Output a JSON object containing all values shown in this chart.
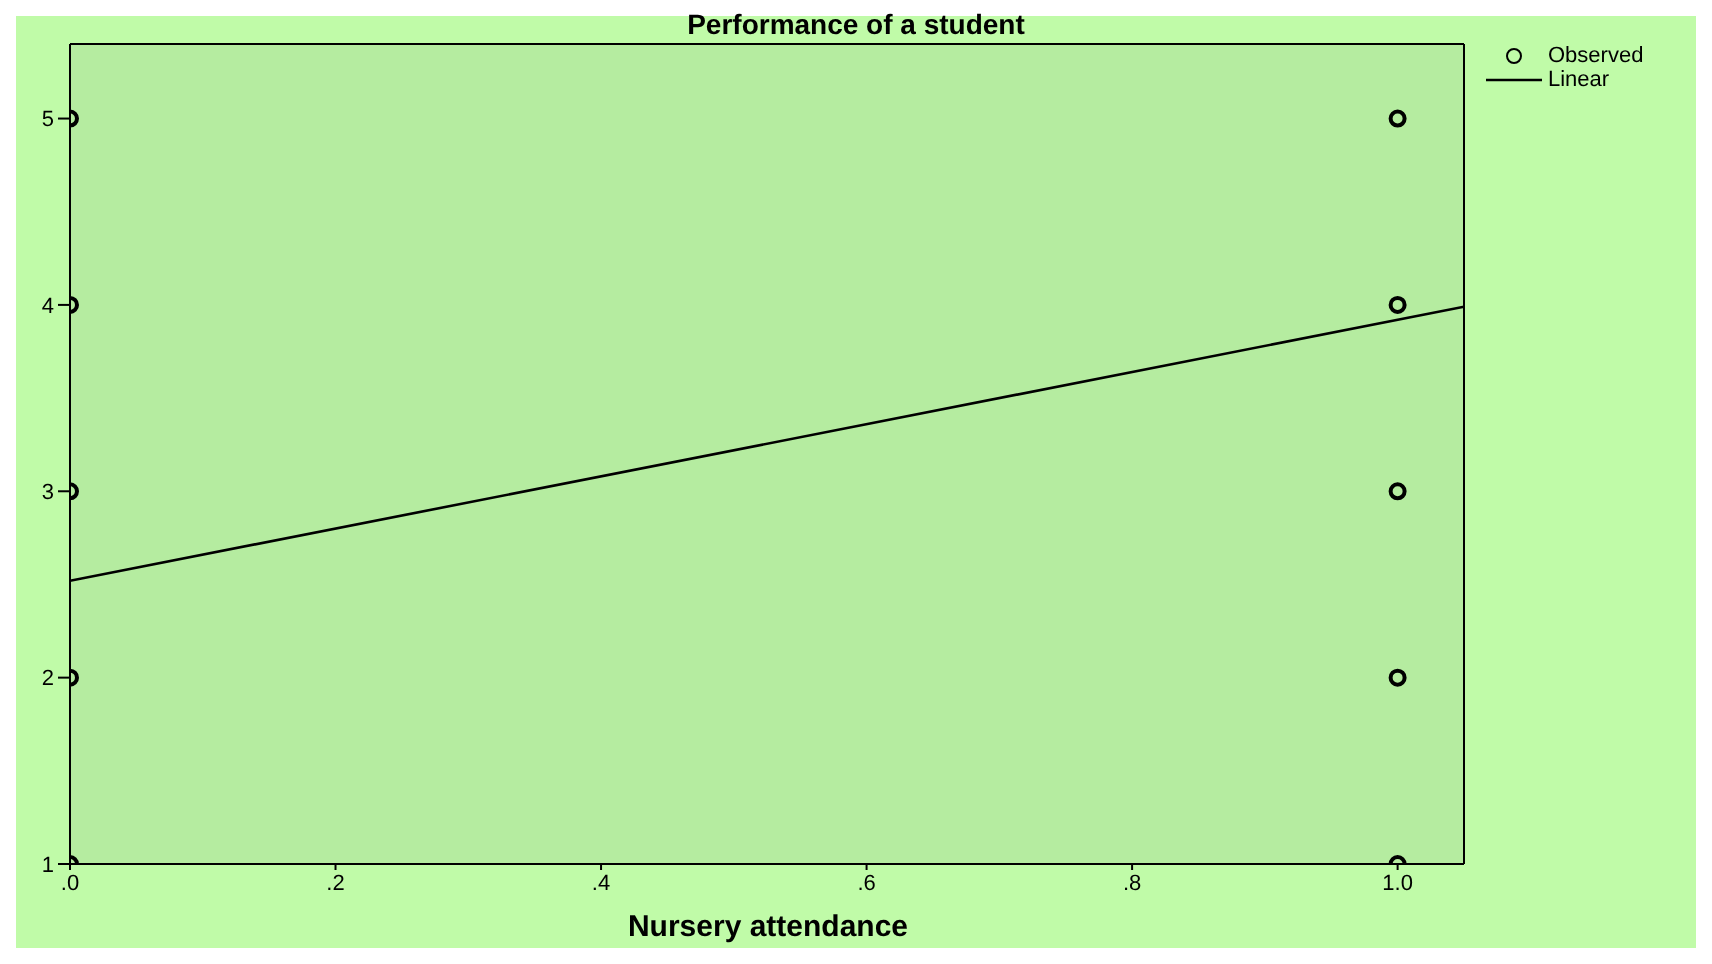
{
  "chart_data": {
    "type": "scatter",
    "title": "Performance of a student",
    "xlabel": "Nursery attendance",
    "series": [
      {
        "name": "Observed",
        "marker": "circle",
        "color": "#000000",
        "x": [
          0,
          0,
          0,
          0,
          0,
          1,
          1,
          1,
          1,
          1
        ],
        "values": [
          1,
          2,
          3,
          4,
          5,
          1,
          2,
          3,
          4,
          5
        ]
      },
      {
        "name": "Linear",
        "type": "line",
        "marker": "none",
        "color": "#000000",
        "x": [
          0,
          1.05
        ],
        "values": [
          2.52,
          3.99
        ]
      }
    ],
    "xlim": [
      0,
      1.05
    ],
    "xticks": [
      {
        "value": 0,
        "label": ".0"
      },
      {
        "value": 0.2,
        "label": ".2"
      },
      {
        "value": 0.4,
        "label": ".4"
      },
      {
        "value": 0.6,
        "label": ".6"
      },
      {
        "value": 0.8,
        "label": ".8"
      },
      {
        "value": 1,
        "label": "1.0"
      }
    ],
    "ylim": [
      1,
      5.4
    ],
    "yticks": [
      1,
      2,
      3,
      4,
      5
    ],
    "line_style": "solid",
    "legend": "top right"
  }
}
